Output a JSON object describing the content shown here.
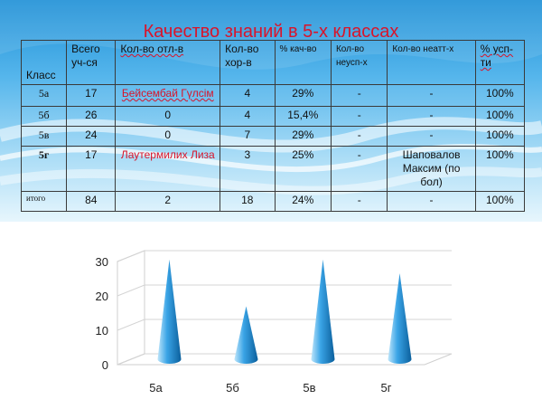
{
  "slide": {
    "title": "Качество знаний в 5-х классах"
  },
  "table": {
    "headers": {
      "class": "Класс",
      "total": "Всего уч-ся",
      "excellent": "Кол-во отл-в",
      "good": "Кол-во хор-в",
      "quality": "% кач-во",
      "failing": "Кол-во неусп-х",
      "unattested": "Кол-во неатт-х",
      "success": "% усп-ти"
    },
    "rows": [
      {
        "class": "5а",
        "total": "17",
        "excellent": "Бейсембай Гүлсім",
        "good": "4",
        "quality": "29%",
        "failing": "-",
        "unattested": "-",
        "success": "100%"
      },
      {
        "class": "5б",
        "total": "26",
        "excellent": "0",
        "good": "4",
        "quality": "15,4%",
        "failing": "-",
        "unattested": "-",
        "success": "100%"
      },
      {
        "class": "5в",
        "total": "24",
        "excellent": "0",
        "good": "7",
        "quality": "29%",
        "failing": "-",
        "unattested": "-",
        "success": "100%"
      },
      {
        "class": "5г",
        "total": "17",
        "excellent": "Лаутермилих Лиза",
        "good": "3",
        "quality": "25%",
        "failing": "-",
        "unattested": "Шаповалов Максим (по бол)",
        "success": "100%"
      },
      {
        "class": "итого",
        "total": "84",
        "excellent": "2",
        "good": "18",
        "quality": "24%",
        "failing": "-",
        "unattested": "-",
        "success": "100%"
      }
    ]
  },
  "colors": {
    "title": "#d9142a",
    "cone_light": "#bfe6fb",
    "cone_mid": "#3aa4e6",
    "cone_dark": "#0b5f9c",
    "axis_text": "#222222"
  },
  "chart_data": {
    "type": "bar",
    "style": "3d-cone",
    "categories": [
      "5а",
      "5б",
      "5в",
      "5г"
    ],
    "series": [
      {
        "values": [
          29,
          15.4,
          29,
          25
        ]
      }
    ],
    "yticks": [
      0,
      10,
      20,
      30
    ],
    "ylim": [
      0,
      30
    ],
    "title": "",
    "xlabel": "",
    "ylabel": "",
    "grid": true,
    "legend": "none"
  }
}
